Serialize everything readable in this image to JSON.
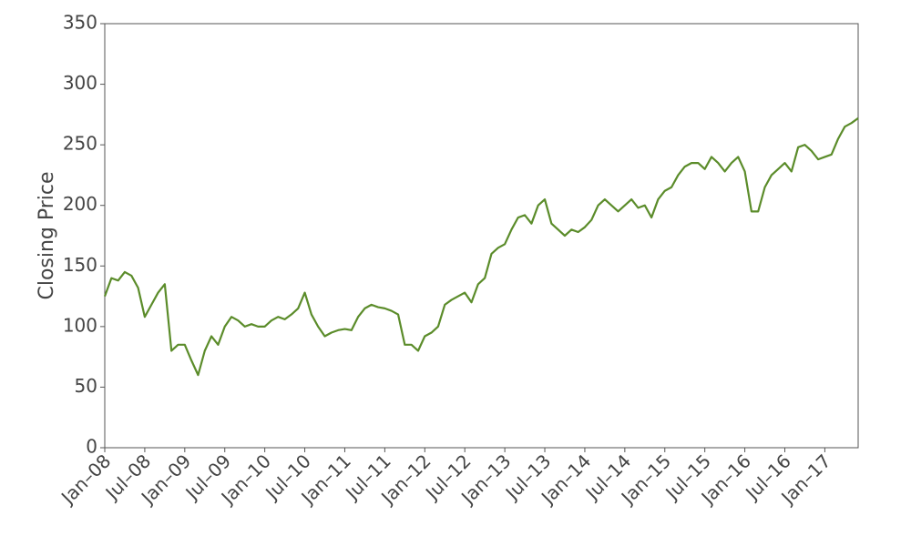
{
  "chart_data": {
    "type": "line",
    "ylabel": "Closing Price",
    "x": [
      "2008-01",
      "2008-02",
      "2008-03",
      "2008-04",
      "2008-05",
      "2008-06",
      "2008-07",
      "2008-08",
      "2008-09",
      "2008-10",
      "2008-11",
      "2008-12",
      "2009-01",
      "2009-02",
      "2009-03",
      "2009-04",
      "2009-05",
      "2009-06",
      "2009-07",
      "2009-08",
      "2009-09",
      "2009-10",
      "2009-11",
      "2009-12",
      "2010-01",
      "2010-02",
      "2010-03",
      "2010-04",
      "2010-05",
      "2010-06",
      "2010-07",
      "2010-08",
      "2010-09",
      "2010-10",
      "2010-11",
      "2010-12",
      "2011-01",
      "2011-02",
      "2011-03",
      "2011-04",
      "2011-05",
      "2011-06",
      "2011-07",
      "2011-08",
      "2011-09",
      "2011-10",
      "2011-11",
      "2011-12",
      "2012-01",
      "2012-02",
      "2012-03",
      "2012-04",
      "2012-05",
      "2012-06",
      "2012-07",
      "2012-08",
      "2012-09",
      "2012-10",
      "2012-11",
      "2012-12",
      "2013-01",
      "2013-02",
      "2013-03",
      "2013-04",
      "2013-05",
      "2013-06",
      "2013-07",
      "2013-08",
      "2013-09",
      "2013-10",
      "2013-11",
      "2013-12",
      "2014-01",
      "2014-02",
      "2014-03",
      "2014-04",
      "2014-05",
      "2014-06",
      "2014-07",
      "2014-08",
      "2014-09",
      "2014-10",
      "2014-11",
      "2014-12",
      "2015-01",
      "2015-02",
      "2015-03",
      "2015-04",
      "2015-05",
      "2015-06",
      "2015-07",
      "2015-08",
      "2015-09",
      "2015-10",
      "2015-11",
      "2015-12",
      "2016-01",
      "2016-02",
      "2016-03",
      "2016-04",
      "2016-05",
      "2016-06",
      "2016-07",
      "2016-08",
      "2016-09",
      "2016-10",
      "2016-11",
      "2016-12",
      "2017-01",
      "2017-02",
      "2017-03",
      "2017-04",
      "2017-05",
      "2017-06"
    ],
    "values": [
      125,
      140,
      138,
      145,
      142,
      132,
      108,
      118,
      128,
      135,
      80,
      85,
      85,
      72,
      60,
      80,
      92,
      85,
      100,
      108,
      105,
      100,
      102,
      100,
      100,
      105,
      108,
      106,
      110,
      115,
      128,
      110,
      100,
      92,
      95,
      97,
      98,
      97,
      108,
      115,
      118,
      116,
      115,
      113,
      110,
      85,
      85,
      80,
      92,
      95,
      100,
      118,
      122,
      125,
      128,
      120,
      135,
      140,
      160,
      165,
      168,
      180,
      190,
      192,
      185,
      200,
      205,
      185,
      180,
      175,
      180,
      178,
      182,
      188,
      200,
      205,
      200,
      195,
      200,
      205,
      198,
      200,
      190,
      205,
      212,
      215,
      225,
      232,
      235,
      235,
      230,
      240,
      235,
      228,
      235,
      240,
      228,
      195,
      195,
      215,
      225,
      230,
      235,
      228,
      248,
      250,
      245,
      238,
      240,
      242,
      255,
      265,
      268,
      272
    ],
    "color": "#5b8c2a",
    "xlim": [
      "2008-01",
      "2017-06"
    ],
    "xticks": [
      {
        "value": "2008-01",
        "label": "Jan–08"
      },
      {
        "value": "2008-07",
        "label": "Jul–08"
      },
      {
        "value": "2009-01",
        "label": "Jan–09"
      },
      {
        "value": "2009-07",
        "label": "Jul–09"
      },
      {
        "value": "2010-01",
        "label": "Jan–10"
      },
      {
        "value": "2010-07",
        "label": "Jul–10"
      },
      {
        "value": "2011-01",
        "label": "Jan–11"
      },
      {
        "value": "2011-07",
        "label": "Jul–11"
      },
      {
        "value": "2012-01",
        "label": "Jan–12"
      },
      {
        "value": "2012-07",
        "label": "Jul–12"
      },
      {
        "value": "2013-01",
        "label": "Jan–13"
      },
      {
        "value": "2013-07",
        "label": "Jul–13"
      },
      {
        "value": "2014-01",
        "label": "Jan–14"
      },
      {
        "value": "2014-07",
        "label": "Jul–14"
      },
      {
        "value": "2015-01",
        "label": "Jan–15"
      },
      {
        "value": "2015-07",
        "label": "Jul–15"
      },
      {
        "value": "2016-01",
        "label": "Jan–16"
      },
      {
        "value": "2016-07",
        "label": "Jul–16"
      },
      {
        "value": "2017-01",
        "label": "Jan–17"
      }
    ],
    "ylim": [
      0,
      350
    ],
    "yticks": [
      0,
      50,
      100,
      150,
      200,
      250,
      300,
      350
    ]
  }
}
